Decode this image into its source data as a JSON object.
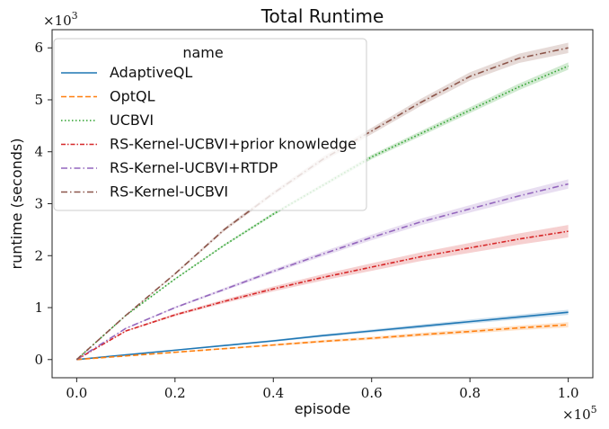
{
  "chart_data": {
    "type": "line",
    "title": "Total Runtime",
    "xlabel": "episode",
    "ylabel": "runtime (seconds)",
    "x_multiplier": "×10",
    "x_multiplier_exp": "5",
    "y_multiplier": "×10",
    "y_multiplier_exp": "3",
    "xlim": [
      -0.05,
      1.05
    ],
    "ylim": [
      -0.35,
      6.35
    ],
    "x_ticks": [
      0.0,
      0.2,
      0.4,
      0.6,
      0.8,
      1.0
    ],
    "x_tick_labels": [
      "0.0",
      "0.2",
      "0.4",
      "0.6",
      "0.8",
      "1.0"
    ],
    "y_ticks": [
      0,
      1,
      2,
      3,
      4,
      5,
      6
    ],
    "y_tick_labels": [
      "0",
      "1",
      "2",
      "3",
      "4",
      "5",
      "6"
    ],
    "grid": false,
    "legend_title": "name",
    "legend_position": "upper-left",
    "x": [
      0.0,
      0.1,
      0.2,
      0.3,
      0.4,
      0.5,
      0.6,
      0.7,
      0.8,
      0.9,
      1.0
    ],
    "series": [
      {
        "name": "AdaptiveQL",
        "color": "#1f77b4",
        "dash": "solid",
        "values": [
          0.0,
          0.09,
          0.18,
          0.27,
          0.36,
          0.46,
          0.55,
          0.64,
          0.73,
          0.82,
          0.91
        ],
        "band": 0.05
      },
      {
        "name": "OptQL",
        "color": "#ff7f0e",
        "dash": "dashed",
        "values": [
          0.0,
          0.07,
          0.14,
          0.21,
          0.28,
          0.35,
          0.41,
          0.48,
          0.54,
          0.61,
          0.67
        ],
        "band": 0.05
      },
      {
        "name": "UCBVI",
        "color": "#2ca02c",
        "dash": "dotted",
        "values": [
          0.0,
          0.85,
          1.55,
          2.2,
          2.8,
          3.35,
          3.9,
          4.35,
          4.8,
          5.25,
          5.65
        ],
        "band": 0.07
      },
      {
        "name": "RS-Kernel-UCBVI+prior knowledge",
        "color": "#d62728",
        "dash": "dashdot2",
        "values": [
          0.0,
          0.55,
          0.86,
          1.12,
          1.36,
          1.58,
          1.78,
          1.98,
          2.15,
          2.32,
          2.47
        ],
        "band": 0.12
      },
      {
        "name": "RS-Kernel-UCBVI+RTDP",
        "color": "#9467bd",
        "dash": "dashdot",
        "values": [
          0.0,
          0.6,
          1.0,
          1.35,
          1.7,
          2.03,
          2.35,
          2.65,
          2.9,
          3.15,
          3.38
        ],
        "band": 0.09
      },
      {
        "name": "RS-Kernel-UCBVI",
        "color": "#8c564b",
        "dash": "dashdot",
        "values": [
          0.0,
          0.85,
          1.65,
          2.5,
          3.2,
          3.85,
          4.4,
          4.95,
          5.45,
          5.8,
          6.0
        ],
        "band": 0.1
      }
    ]
  }
}
